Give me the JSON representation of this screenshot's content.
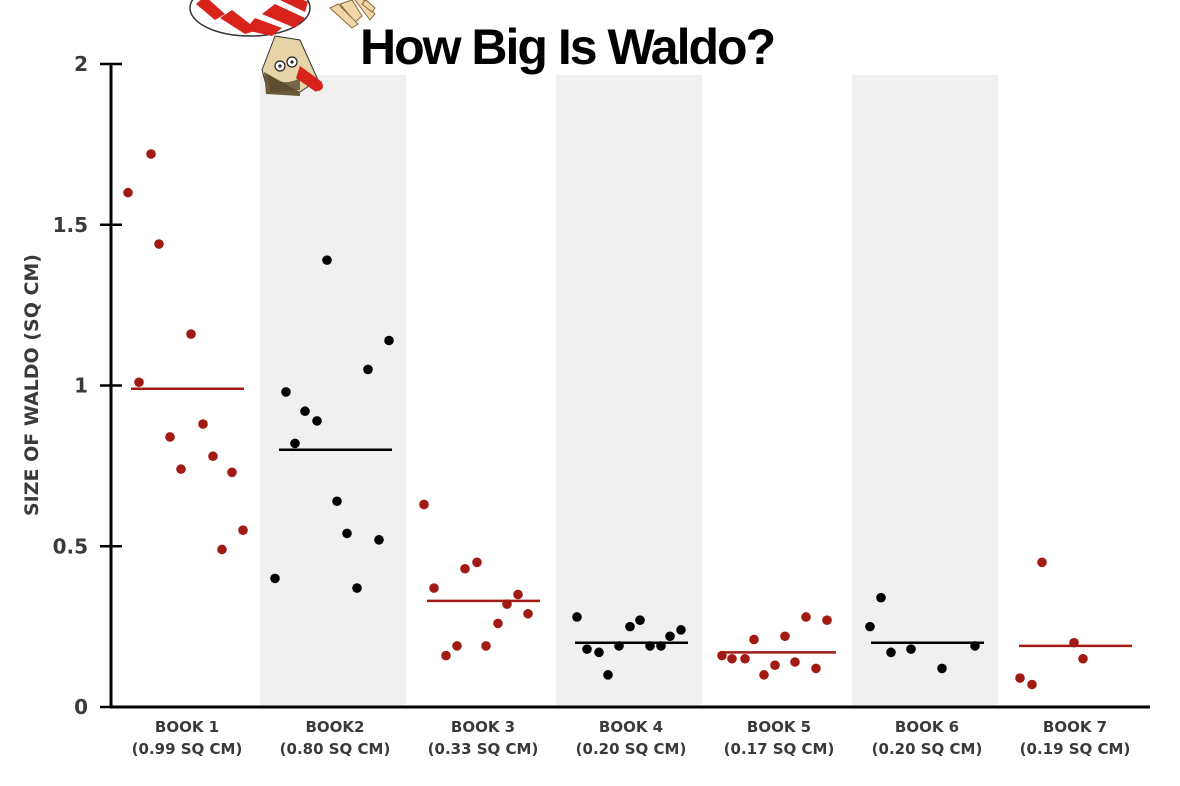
{
  "chart_data": {
    "type": "scatter",
    "title": "How Big Is Waldo?",
    "xlabel": "",
    "ylabel": "SIZE OF WALDO (SQ CM)",
    "ylim": [
      0,
      2
    ],
    "yticks": [
      0,
      0.5,
      1,
      1.5,
      2
    ],
    "ytick_labels": [
      "0",
      "0.5",
      "1",
      "1.5",
      "2"
    ],
    "grid": false,
    "legend": null,
    "alternating_band_color": "#f0f0f0",
    "categories": [
      {
        "label": "BOOK 1",
        "sublabel": "(0.99 SQ CM)",
        "mean": 0.99,
        "color": "#a11a14",
        "shaded": false,
        "values": [
          1.6,
          1.72,
          1.44,
          1.16,
          1.01,
          0.84,
          0.88,
          0.74,
          0.78,
          0.73,
          0.49,
          0.55
        ]
      },
      {
        "label": "BOOK2",
        "sublabel": "(0.80 SQ CM)",
        "mean": 0.8,
        "color": "#000000",
        "shaded": true,
        "values": [
          1.39,
          1.14,
          1.05,
          0.98,
          0.89,
          0.92,
          0.82,
          0.64,
          0.54,
          0.52,
          0.4,
          0.37
        ]
      },
      {
        "label": "BOOK 3",
        "sublabel": "(0.33 SQ CM)",
        "mean": 0.33,
        "color": "#a11a14",
        "shaded": false,
        "values": [
          0.63,
          0.37,
          0.43,
          0.45,
          0.35,
          0.32,
          0.26,
          0.29,
          0.19,
          0.16,
          0.19
        ]
      },
      {
        "label": "BOOK 4",
        "sublabel": "(0.20 SQ CM)",
        "mean": 0.2,
        "color": "#000000",
        "shaded": true,
        "values": [
          0.28,
          0.18,
          0.17,
          0.19,
          0.25,
          0.27,
          0.19,
          0.19,
          0.22,
          0.24,
          0.1
        ]
      },
      {
        "label": "BOOK 5",
        "sublabel": "(0.17 SQ CM)",
        "mean": 0.17,
        "color": "#a11a14",
        "shaded": false,
        "values": [
          0.16,
          0.15,
          0.15,
          0.21,
          0.1,
          0.13,
          0.22,
          0.14,
          0.28,
          0.12,
          0.27
        ]
      },
      {
        "label": "BOOK 6",
        "sublabel": "(0.20 SQ CM)",
        "mean": 0.2,
        "color": "#000000",
        "shaded": true,
        "values": [
          0.25,
          0.34,
          0.17,
          0.18,
          0.12,
          0.19
        ]
      },
      {
        "label": "BOOK 7",
        "sublabel": "(0.19 SQ CM)",
        "mean": 0.19,
        "color": "#a11a14",
        "shaded": false,
        "values": [
          0.45,
          0.2,
          0.15,
          0.09,
          0.07
        ]
      }
    ],
    "point_x_offsets": [
      [
        128,
        151,
        159,
        191,
        139,
        170,
        203,
        181,
        213,
        232,
        222,
        243
      ],
      [
        327,
        389,
        368,
        286,
        317,
        305,
        295,
        337,
        347,
        379,
        275,
        357
      ],
      [
        424,
        434,
        465,
        477,
        518,
        507,
        498,
        528,
        457,
        446,
        486
      ],
      [
        577,
        587,
        599,
        619,
        630,
        640,
        650,
        661,
        670,
        681,
        608
      ],
      [
        722,
        732,
        745,
        754,
        764,
        775,
        785,
        795,
        806,
        816,
        827
      ],
      [
        870,
        881,
        891,
        911,
        942,
        975
      ],
      [
        1042,
        1074,
        1083,
        1020,
        1032
      ]
    ]
  },
  "decoration": {
    "illustration": "waldo-upside-down"
  }
}
